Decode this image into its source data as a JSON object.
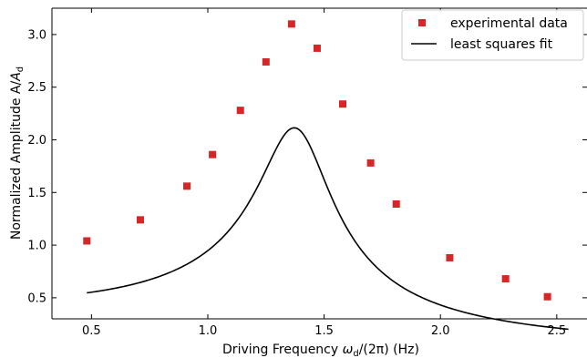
{
  "chart_data": {
    "type": "scatter",
    "xlabel": {
      "prefix": "Driving Frequency  ",
      "omega": "ω",
      "sub": "d",
      "suffix": "/(2π) (Hz)"
    },
    "ylabel": {
      "prefix": "Normalized Amplitude A/",
      "A": "A",
      "sub": "d"
    },
    "xlim": [
      0.33,
      2.63
    ],
    "ylim": [
      0.3,
      3.25
    ],
    "xticks": [
      0.5,
      1.0,
      1.5,
      2.0,
      2.5
    ],
    "xtick_labels": [
      "0.5",
      "1.0",
      "1.5",
      "2.0",
      "2.5"
    ],
    "yticks": [
      0.5,
      1.0,
      1.5,
      2.0,
      2.5,
      3.0
    ],
    "ytick_labels": [
      "0.5",
      "1.0",
      "1.5",
      "2.0",
      "2.5",
      "3.0"
    ],
    "grid": false,
    "legend_position": "top-right",
    "series": [
      {
        "name": "experimental data",
        "kind": "scatter",
        "marker": "square",
        "color": "#d62728",
        "x": [
          0.48,
          0.71,
          0.91,
          1.02,
          1.14,
          1.25,
          1.36,
          1.47,
          1.58,
          1.7,
          1.81,
          2.04,
          2.28,
          2.46
        ],
        "y": [
          1.04,
          1.24,
          1.56,
          1.86,
          2.28,
          2.74,
          3.1,
          2.87,
          2.34,
          1.78,
          1.39,
          0.88,
          0.68,
          0.51
        ]
      },
      {
        "name": "least squares fit",
        "kind": "line",
        "color": "#000000",
        "model": {
          "type": "lorentzian",
          "f0": 1.39,
          "gamma": 0.32,
          "scale": 2.1
        },
        "x_range": [
          0.48,
          2.55
        ]
      }
    ]
  }
}
